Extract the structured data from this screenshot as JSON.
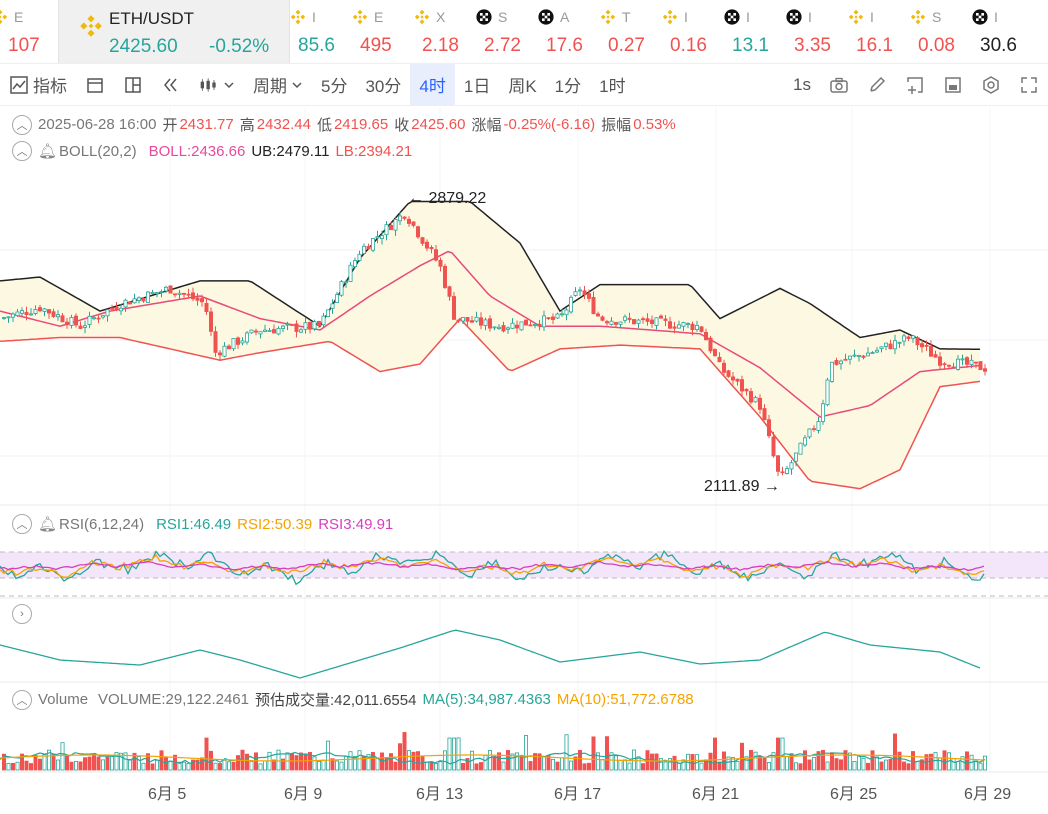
{
  "ticker": [
    {
      "name": "E",
      "price": "107",
      "dir": "dn",
      "icon": "binance-icon"
    },
    {
      "name": "ETH/USDT",
      "price": "2425.60",
      "change": "-0.52%",
      "dir": "up",
      "icon": "binance-icon",
      "active": true
    },
    {
      "name": "I",
      "price": "85.6",
      "dir": "up",
      "icon": "binance-icon"
    },
    {
      "name": "E",
      "price": "495",
      "dir": "dn",
      "icon": "binance-icon"
    },
    {
      "name": "X",
      "price": "2.18",
      "dir": "dn",
      "icon": "binance-icon"
    },
    {
      "name": "S",
      "price": "2.72",
      "dir": "dn",
      "icon": "okx-icon"
    },
    {
      "name": "A",
      "price": "17.6",
      "dir": "dn",
      "icon": "okx-icon"
    },
    {
      "name": "T",
      "price": "0.27",
      "dir": "dn",
      "icon": "binance-icon"
    },
    {
      "name": "I",
      "price": "0.16",
      "dir": "dn",
      "icon": "binance-icon"
    },
    {
      "name": "I",
      "price": "13.1",
      "dir": "up",
      "icon": "okx-icon"
    },
    {
      "name": "I",
      "price": "3.35",
      "dir": "dn",
      "icon": "okx-icon"
    },
    {
      "name": "I",
      "price": "16.1",
      "dir": "dn",
      "icon": "binance-icon"
    },
    {
      "name": "S",
      "price": "0.08",
      "dir": "dn",
      "icon": "binance-icon"
    },
    {
      "name": "I",
      "price": "30.6",
      "dir": "blk",
      "icon": "okx-icon"
    }
  ],
  "toolbar": {
    "indicators": "指标",
    "period": "周期",
    "intervals": [
      "5分",
      "30分",
      "4时",
      "1日",
      "周K",
      "1分",
      "1时"
    ],
    "active_interval": "4时",
    "refresh": "1s"
  },
  "ohlc": {
    "datetime": "2025-06-28 16:00",
    "open_label": "开",
    "open": "2431.77",
    "high_label": "高",
    "high": "2432.44",
    "low_label": "低",
    "low": "2419.65",
    "close_label": "收",
    "close": "2425.60",
    "change_label": "涨幅",
    "change": "-0.25%(-6.16)",
    "amp_label": "振幅",
    "amp": "0.53%"
  },
  "boll": {
    "name": "BOLL(20,2)",
    "mid": "BOLL:2436.66",
    "ub": "UB:2479.11",
    "lb": "LB:2394.21"
  },
  "annotations": {
    "high": "2879.22",
    "low": "2111.89"
  },
  "rsi": {
    "name": "RSI(6,12,24)",
    "rsi1": "RSI1:46.49",
    "rsi2": "RSI2:50.39",
    "rsi3": "RSI3:49.91"
  },
  "volume": {
    "name": "Volume",
    "vol": "VOLUME:29,122.2461",
    "est": "预估成交量:42,011.6554",
    "ma5": "MA(5):34,987.4363",
    "ma10": "MA(10):51,772.6788"
  },
  "xaxis": [
    "6月 5",
    "6月 9",
    "6月 13",
    "6月 17",
    "6月 21",
    "6月 25",
    "6月 29"
  ],
  "colors": {
    "up": "#26a69a",
    "down": "#ef5350",
    "ub": "#222222",
    "mid": "#e84a7a",
    "lb": "#ef5350",
    "band": "#fdf8e1",
    "rsi1": "#26a69a",
    "rsi2": "#f5a300",
    "rsi3": "#d63ec0"
  }
}
